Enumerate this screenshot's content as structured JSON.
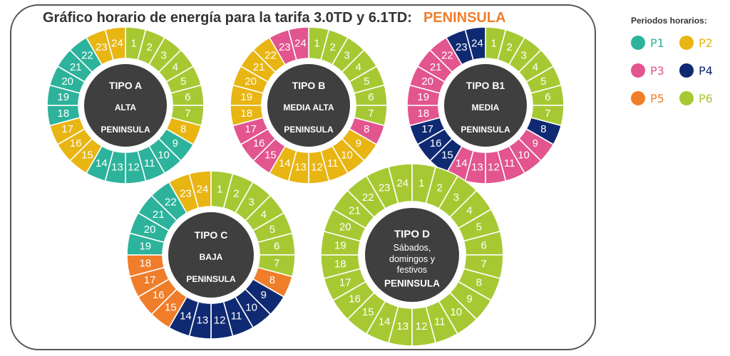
{
  "title": "Gráfico horario de energía para la tarifa 3.0TD y 6.1TD:",
  "title_highlight": "PENINSULA",
  "legend": {
    "title": "Periodos horarios:",
    "items": [
      {
        "id": "P1",
        "label": "P1",
        "color": "#2db39b"
      },
      {
        "id": "P2",
        "label": "P2",
        "color": "#e8b512"
      },
      {
        "id": "P3",
        "label": "P3",
        "color": "#e2558f"
      },
      {
        "id": "P4",
        "label": "P4",
        "color": "#0f2a72"
      },
      {
        "id": "P5",
        "label": "P5",
        "color": "#f07d2a"
      },
      {
        "id": "P6",
        "label": "P6",
        "color": "#a6c933"
      }
    ]
  },
  "center_color": "#3f3f3f",
  "dials": [
    {
      "id": "tipo-a",
      "lines": [
        "TIPO A",
        "ALTA",
        "PENINSULA"
      ],
      "periods": [
        "P6",
        "P6",
        "P6",
        "P6",
        "P6",
        "P6",
        "P6",
        "P2",
        "P1",
        "P1",
        "P1",
        "P1",
        "P1",
        "P1",
        "P2",
        "P2",
        "P2",
        "P1",
        "P1",
        "P1",
        "P1",
        "P1",
        "P2",
        "P2"
      ]
    },
    {
      "id": "tipo-b",
      "lines": [
        "TIPO B",
        "MEDIA ALTA",
        "PENINSULA"
      ],
      "periods": [
        "P6",
        "P6",
        "P6",
        "P6",
        "P6",
        "P6",
        "P6",
        "P3",
        "P2",
        "P2",
        "P2",
        "P2",
        "P2",
        "P2",
        "P3",
        "P3",
        "P3",
        "P2",
        "P2",
        "P2",
        "P2",
        "P2",
        "P3",
        "P3"
      ]
    },
    {
      "id": "tipo-b1",
      "lines": [
        "TIPO B1",
        "MEDIA",
        "PENINSULA"
      ],
      "periods": [
        "P6",
        "P6",
        "P6",
        "P6",
        "P6",
        "P6",
        "P6",
        "P4",
        "P3",
        "P3",
        "P3",
        "P3",
        "P3",
        "P3",
        "P4",
        "P4",
        "P4",
        "P3",
        "P3",
        "P3",
        "P3",
        "P3",
        "P4",
        "P4"
      ]
    },
    {
      "id": "tipo-c",
      "lines": [
        "TIPO C",
        "BAJA",
        "PENINSULA"
      ],
      "periods": [
        "P6",
        "P6",
        "P6",
        "P6",
        "P6",
        "P6",
        "P6",
        "P5",
        "P4",
        "P4",
        "P4",
        "P4",
        "P4",
        "P4",
        "P5",
        "P5",
        "P5",
        "P5",
        "P1",
        "P1",
        "P1",
        "P1",
        "P2",
        "P2"
      ]
    },
    {
      "id": "tipo-d",
      "lines": [
        "TIPO D",
        "Sábados,",
        "domingos y",
        "festivos",
        "PENINSULA"
      ],
      "periods": [
        "P6",
        "P6",
        "P6",
        "P6",
        "P6",
        "P6",
        "P6",
        "P6",
        "P6",
        "P6",
        "P6",
        "P6",
        "P6",
        "P6",
        "P6",
        "P6",
        "P6",
        "P6",
        "P6",
        "P6",
        "P6",
        "P6",
        "P6",
        "P6"
      ]
    }
  ]
}
